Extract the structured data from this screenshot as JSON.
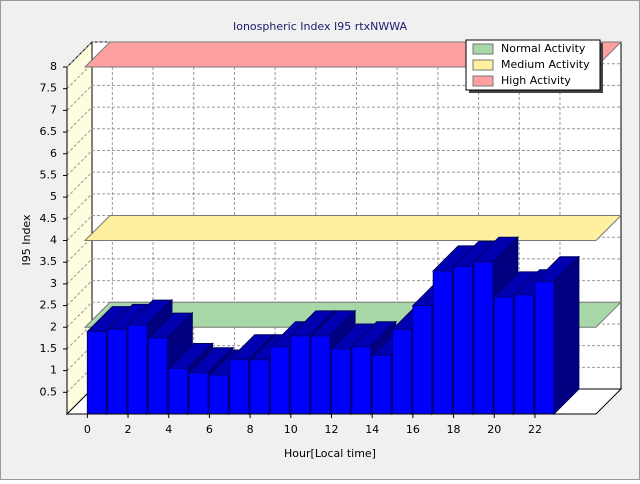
{
  "chart_data": {
    "type": "bar3d",
    "title": "Ionospheric Index I95 rtxNWWA",
    "x_label": "Hour[Local time]",
    "y_label": "I95 Index",
    "x": [
      0,
      1,
      2,
      3,
      4,
      5,
      6,
      7,
      8,
      9,
      10,
      11,
      12,
      13,
      14,
      15,
      16,
      17,
      18,
      19,
      20,
      21,
      22
    ],
    "values": [
      1.9,
      1.95,
      2.05,
      1.75,
      1.05,
      0.95,
      0.9,
      1.25,
      1.25,
      1.55,
      1.8,
      1.8,
      1.5,
      1.55,
      1.35,
      1.95,
      2.5,
      3.3,
      3.4,
      3.5,
      2.7,
      2.75,
      3.05
    ],
    "color": "#0000ff",
    "xlim": [
      -1,
      25
    ],
    "xticks": [
      0,
      2,
      4,
      6,
      8,
      10,
      12,
      14,
      16,
      18,
      20,
      22
    ],
    "ylim": [
      0,
      8
    ],
    "yticks": [
      0.5,
      1,
      1.5,
      2,
      2.5,
      3,
      3.5,
      4,
      4.5,
      5,
      5.5,
      6,
      6.5,
      7,
      7.5,
      8
    ],
    "grid": true,
    "legend": "top-right",
    "bands": [
      {
        "name": "Normal Activity",
        "value": 2,
        "color": "#a8d8a8"
      },
      {
        "name": "Medium Activity",
        "value": 4,
        "color": "#fff0a0"
      },
      {
        "name": "High Activity",
        "value": 8,
        "color": "#ffa0a0"
      }
    ]
  }
}
